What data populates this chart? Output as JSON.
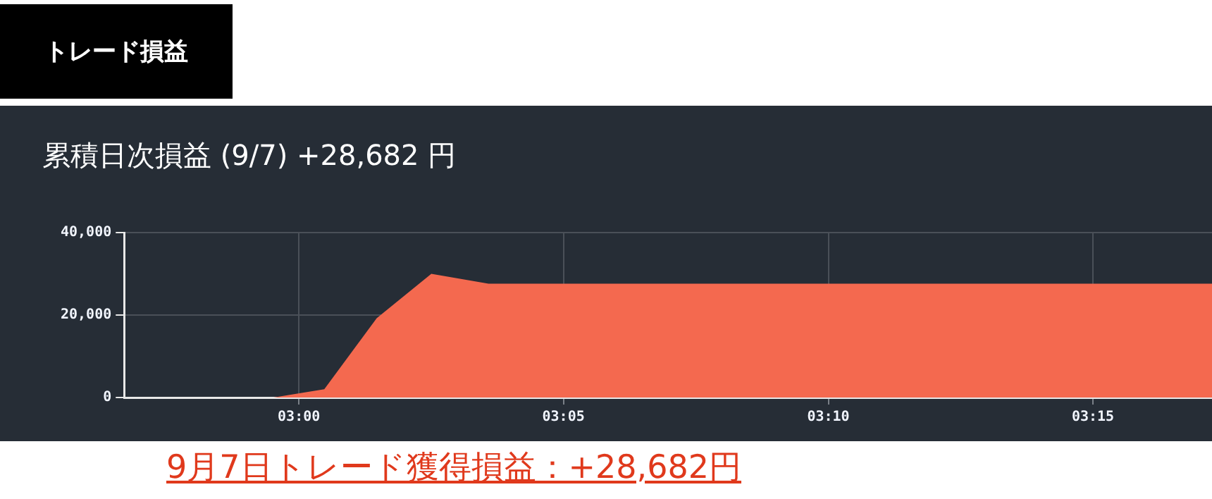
{
  "chart_data": {
    "type": "area",
    "title": "累積日次損益 (9/7) +28,682 円",
    "annotations": [
      "トレード損益",
      "9月7日トレード獲得損益：+28,682円"
    ],
    "x": [
      2.945,
      2.992,
      3.008,
      3.0245,
      3.0417,
      3.0597,
      3.2875
    ],
    "series": [
      {
        "color": "#f4694f",
        "values": [
          0,
          0,
          2000,
          19250,
          30000,
          27600,
          27600
        ]
      }
    ],
    "xlim": [
      2.945,
      3.2875
    ],
    "xticks": [
      {
        "value": 3,
        "label": "03:00"
      },
      {
        "value": 3.0833,
        "label": "03:05"
      },
      {
        "value": 3.1667,
        "label": "03:10"
      },
      {
        "value": 3.25,
        "label": "03:15"
      }
    ],
    "ylim": [
      0,
      40000
    ],
    "yticks": [
      {
        "value": 0,
        "label": "0"
      },
      {
        "value": 20000,
        "label": "20,000"
      },
      {
        "value": 40000,
        "label": "40,000"
      }
    ],
    "grid": true,
    "legend": false
  }
}
